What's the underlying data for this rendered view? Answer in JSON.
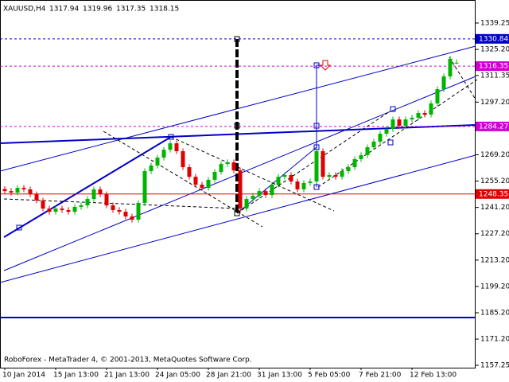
{
  "chart_data": {
    "type": "candlestick",
    "symbol": "XAUUSD,H4",
    "copyright": "RoboForex - MetaTrader 4, © 2001-2013, MetaQuotes Software Corp.",
    "up_color": "#00b400",
    "down_color": "#e00000",
    "categories": [
      "10 Jan 2014",
      null,
      null,
      null,
      null,
      null,
      null,
      null,
      "15 Jan 13:00",
      null,
      null,
      null,
      null,
      null,
      null,
      null,
      "21 Jan 13:00",
      null,
      null,
      null,
      null,
      null,
      null,
      null,
      "24 Jan 05:00",
      null,
      null,
      null,
      null,
      null,
      null,
      null,
      "28 Jan 21:00",
      null,
      null,
      null,
      null,
      null,
      null,
      null,
      "31 Jan 13:00",
      null,
      null,
      null,
      null,
      null,
      null,
      null,
      "5 Feb 05:00",
      null,
      null,
      null,
      null,
      null,
      null,
      null,
      "7 Feb 21:00",
      null,
      null,
      null,
      null,
      null,
      null,
      null,
      "12 Feb 13:00",
      null,
      null,
      null,
      null,
      null,
      null,
      null
    ],
    "ohlc": [
      [
        1251.0,
        1252.5,
        1248.4,
        1249.9
      ],
      [
        1249.9,
        1251.4,
        1247.6,
        1249.1
      ],
      [
        1249.1,
        1253.1,
        1247.6,
        1251.6
      ],
      [
        1251.6,
        1253.1,
        1249.3,
        1250.8
      ],
      [
        1250.8,
        1252.3,
        1246.7,
        1248.2
      ],
      [
        1248.2,
        1249.7,
        1243.4,
        1244.9
      ],
      [
        1244.9,
        1246.4,
        1239.1,
        1240.6
      ],
      [
        1240.6,
        1242.1,
        1237.4,
        1238.9
      ],
      [
        1238.9,
        1242.1,
        1237.4,
        1240.6
      ],
      [
        1240.6,
        1242.1,
        1238.3,
        1239.8
      ],
      [
        1239.8,
        1241.3,
        1237.4,
        1238.9
      ],
      [
        1238.9,
        1243.0,
        1237.4,
        1241.5
      ],
      [
        1241.5,
        1243.8,
        1240.0,
        1242.3
      ],
      [
        1242.3,
        1247.2,
        1240.8,
        1245.7
      ],
      [
        1245.7,
        1252.3,
        1244.2,
        1250.8
      ],
      [
        1250.8,
        1252.3,
        1246.7,
        1248.2
      ],
      [
        1248.2,
        1249.7,
        1240.8,
        1242.3
      ],
      [
        1242.3,
        1243.8,
        1238.3,
        1239.8
      ],
      [
        1239.8,
        1241.3,
        1237.4,
        1238.9
      ],
      [
        1238.9,
        1240.4,
        1234.9,
        1236.4
      ],
      [
        1236.4,
        1237.9,
        1233.2,
        1234.7
      ],
      [
        1234.7,
        1245.1,
        1233.2,
        1243.6
      ],
      [
        1243.6,
        1262.0,
        1242.1,
        1260.5
      ],
      [
        1260.5,
        1265.0,
        1259.0,
        1263.5
      ],
      [
        1263.5,
        1269.2,
        1262.0,
        1267.7
      ],
      [
        1267.7,
        1273.4,
        1266.2,
        1271.9
      ],
      [
        1271.9,
        1276.8,
        1270.4,
        1275.3
      ],
      [
        1275.3,
        1276.8,
        1269.6,
        1271.1
      ],
      [
        1271.1,
        1272.6,
        1261.1,
        1262.6
      ],
      [
        1262.6,
        1264.1,
        1256.0,
        1257.5
      ],
      [
        1257.5,
        1259.0,
        1251.8,
        1253.3
      ],
      [
        1253.3,
        1254.8,
        1250.1,
        1251.6
      ],
      [
        1251.6,
        1257.4,
        1250.1,
        1255.9
      ],
      [
        1255.9,
        1261.6,
        1254.4,
        1260.1
      ],
      [
        1260.1,
        1265.8,
        1258.6,
        1264.3
      ],
      [
        1264.3,
        1266.7,
        1262.8,
        1265.2
      ],
      [
        1265.2,
        1266.7,
        1259.4,
        1260.9
      ],
      [
        1260.9,
        1262.4,
        1238.0,
        1240.6
      ],
      [
        1240.6,
        1247.2,
        1239.1,
        1245.7
      ],
      [
        1245.7,
        1248.9,
        1244.2,
        1247.4
      ],
      [
        1247.4,
        1251.4,
        1245.9,
        1249.9
      ],
      [
        1249.9,
        1251.4,
        1246.3,
        1247.8
      ],
      [
        1247.8,
        1254.8,
        1246.3,
        1253.3
      ],
      [
        1253.3,
        1259.0,
        1251.8,
        1257.5
      ],
      [
        1257.5,
        1259.9,
        1256.0,
        1258.4
      ],
      [
        1258.4,
        1259.9,
        1253.5,
        1255.0
      ],
      [
        1255.0,
        1256.5,
        1249.3,
        1250.8
      ],
      [
        1250.8,
        1255.7,
        1249.3,
        1254.2
      ],
      [
        1254.2,
        1256.5,
        1252.7,
        1255.0
      ],
      [
        1255.0,
        1272.6,
        1253.5,
        1271.1
      ],
      [
        1271.1,
        1272.6,
        1256.0,
        1257.5
      ],
      [
        1257.5,
        1259.9,
        1256.0,
        1258.4
      ],
      [
        1258.4,
        1259.9,
        1256.0,
        1257.5
      ],
      [
        1257.5,
        1262.0,
        1256.0,
        1260.5
      ],
      [
        1260.5,
        1264.1,
        1259.0,
        1262.6
      ],
      [
        1262.6,
        1268.4,
        1261.1,
        1266.9
      ],
      [
        1266.9,
        1270.5,
        1265.4,
        1269.0
      ],
      [
        1269.0,
        1274.7,
        1267.5,
        1273.2
      ],
      [
        1273.2,
        1277.7,
        1271.7,
        1276.2
      ],
      [
        1276.2,
        1281.9,
        1274.7,
        1280.4
      ],
      [
        1280.4,
        1284.4,
        1278.9,
        1282.9
      ],
      [
        1282.9,
        1289.5,
        1281.4,
        1288.0
      ],
      [
        1288.0,
        1289.5,
        1283.1,
        1284.6
      ],
      [
        1284.6,
        1289.5,
        1283.1,
        1288.0
      ],
      [
        1288.0,
        1290.4,
        1286.5,
        1288.9
      ],
      [
        1288.9,
        1292.9,
        1287.4,
        1291.4
      ],
      [
        1291.4,
        1292.9,
        1289.1,
        1290.6
      ],
      [
        1290.6,
        1298.0,
        1289.1,
        1296.5
      ],
      [
        1296.5,
        1305.6,
        1295.0,
        1304.1
      ],
      [
        1304.1,
        1312.4,
        1302.6,
        1310.9
      ],
      [
        1310.9,
        1321.7,
        1309.4,
        1320.2
      ],
      [
        1317.94,
        1319.96,
        1317.35,
        1318.15
      ]
    ],
    "ylim": [
      1156,
      1351.5
    ],
    "yticks": [
      1339.25,
      {
        "value": 1325.2,
        "label": "1325.20"
      },
      1311.35,
      {
        "value": 1297.2,
        "label": "1297.20"
      },
      {
        "value": 1269.2,
        "label": "1269.20"
      },
      {
        "value": 1255.2,
        "label": "1255.20"
      },
      {
        "value": 1241.2,
        "label": "1241.20"
      },
      {
        "value": 1227.2,
        "label": "1227.20"
      },
      {
        "value": 1213.2,
        "label": "1213.20"
      },
      {
        "value": 1199.2,
        "label": "1199.20"
      },
      {
        "value": 1185.2,
        "label": "1185.20"
      },
      {
        "value": 1171.2,
        "label": "1171.20"
      },
      1157.25
    ],
    "levels": [
      {
        "value": 1330.84,
        "color": "#0000c8",
        "dashed": true
      },
      {
        "value": 1316.35,
        "color": "#d000d0",
        "dashed": true
      },
      {
        "value": 1284.27,
        "color": "#d000d0",
        "dashed": true
      },
      {
        "value": 1248.35,
        "color": "#e00000",
        "dashed": false
      }
    ]
  }
}
